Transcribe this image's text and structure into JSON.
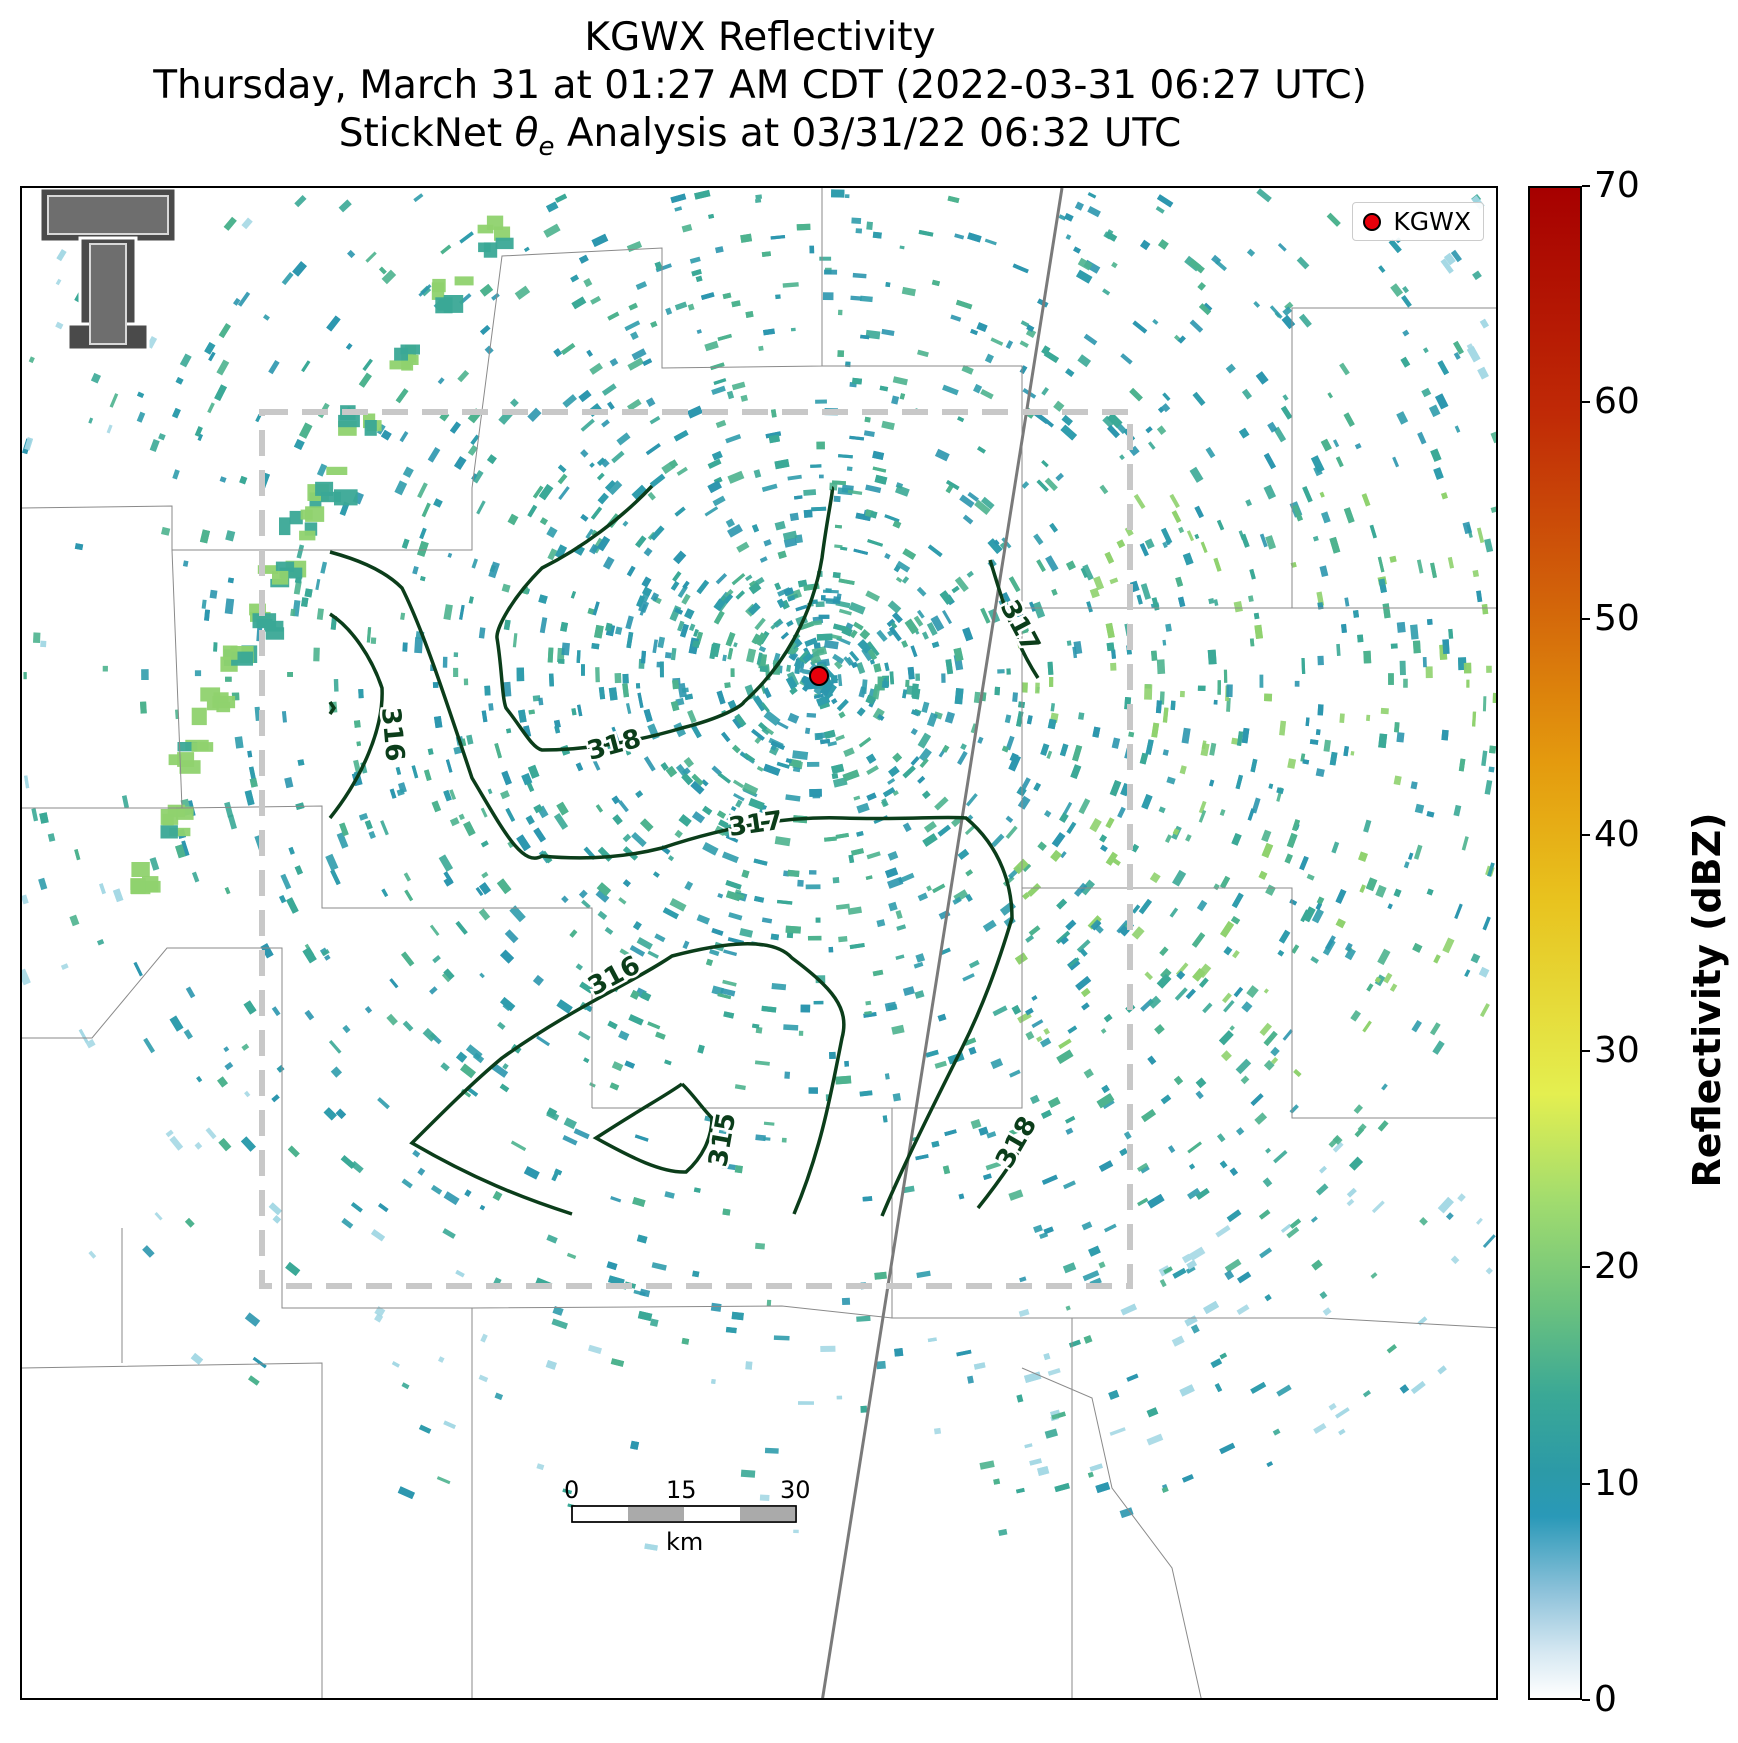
{
  "title": {
    "line1": "KGWX Reflectivity",
    "line2": "Thursday, March 31 at 01:27 AM CDT (2022-03-31 06:27 UTC)",
    "line3_prefix": "StickNet ",
    "line3_theta": "θ",
    "line3_sub": "e",
    "line3_suffix": " Analysis at 03/31/22 06:32 UTC"
  },
  "legend": {
    "label": "KGWX",
    "marker_color": "#e8000b"
  },
  "colorbar": {
    "label": "Reflectivity (dBZ)",
    "ticks": [
      "0",
      "10",
      "20",
      "30",
      "40",
      "50",
      "60",
      "70"
    ],
    "range": [
      0,
      70
    ]
  },
  "contours": {
    "labels": [
      "316",
      "318",
      "317",
      "317",
      "316",
      "315",
      "318"
    ],
    "color": "#0b3d1a"
  },
  "scale_bar": {
    "ticks": [
      "0",
      "15",
      "30"
    ],
    "unit": "km"
  },
  "colors": {
    "echo_base": "#2b96ae",
    "echo_mid": "#3aa896",
    "echo_high": "#8fd26e",
    "analysis_box": "#c8c8c8",
    "boundaries": "#8a8a8a",
    "highway": "#7a7a7a"
  },
  "logo": {
    "text": "T"
  }
}
